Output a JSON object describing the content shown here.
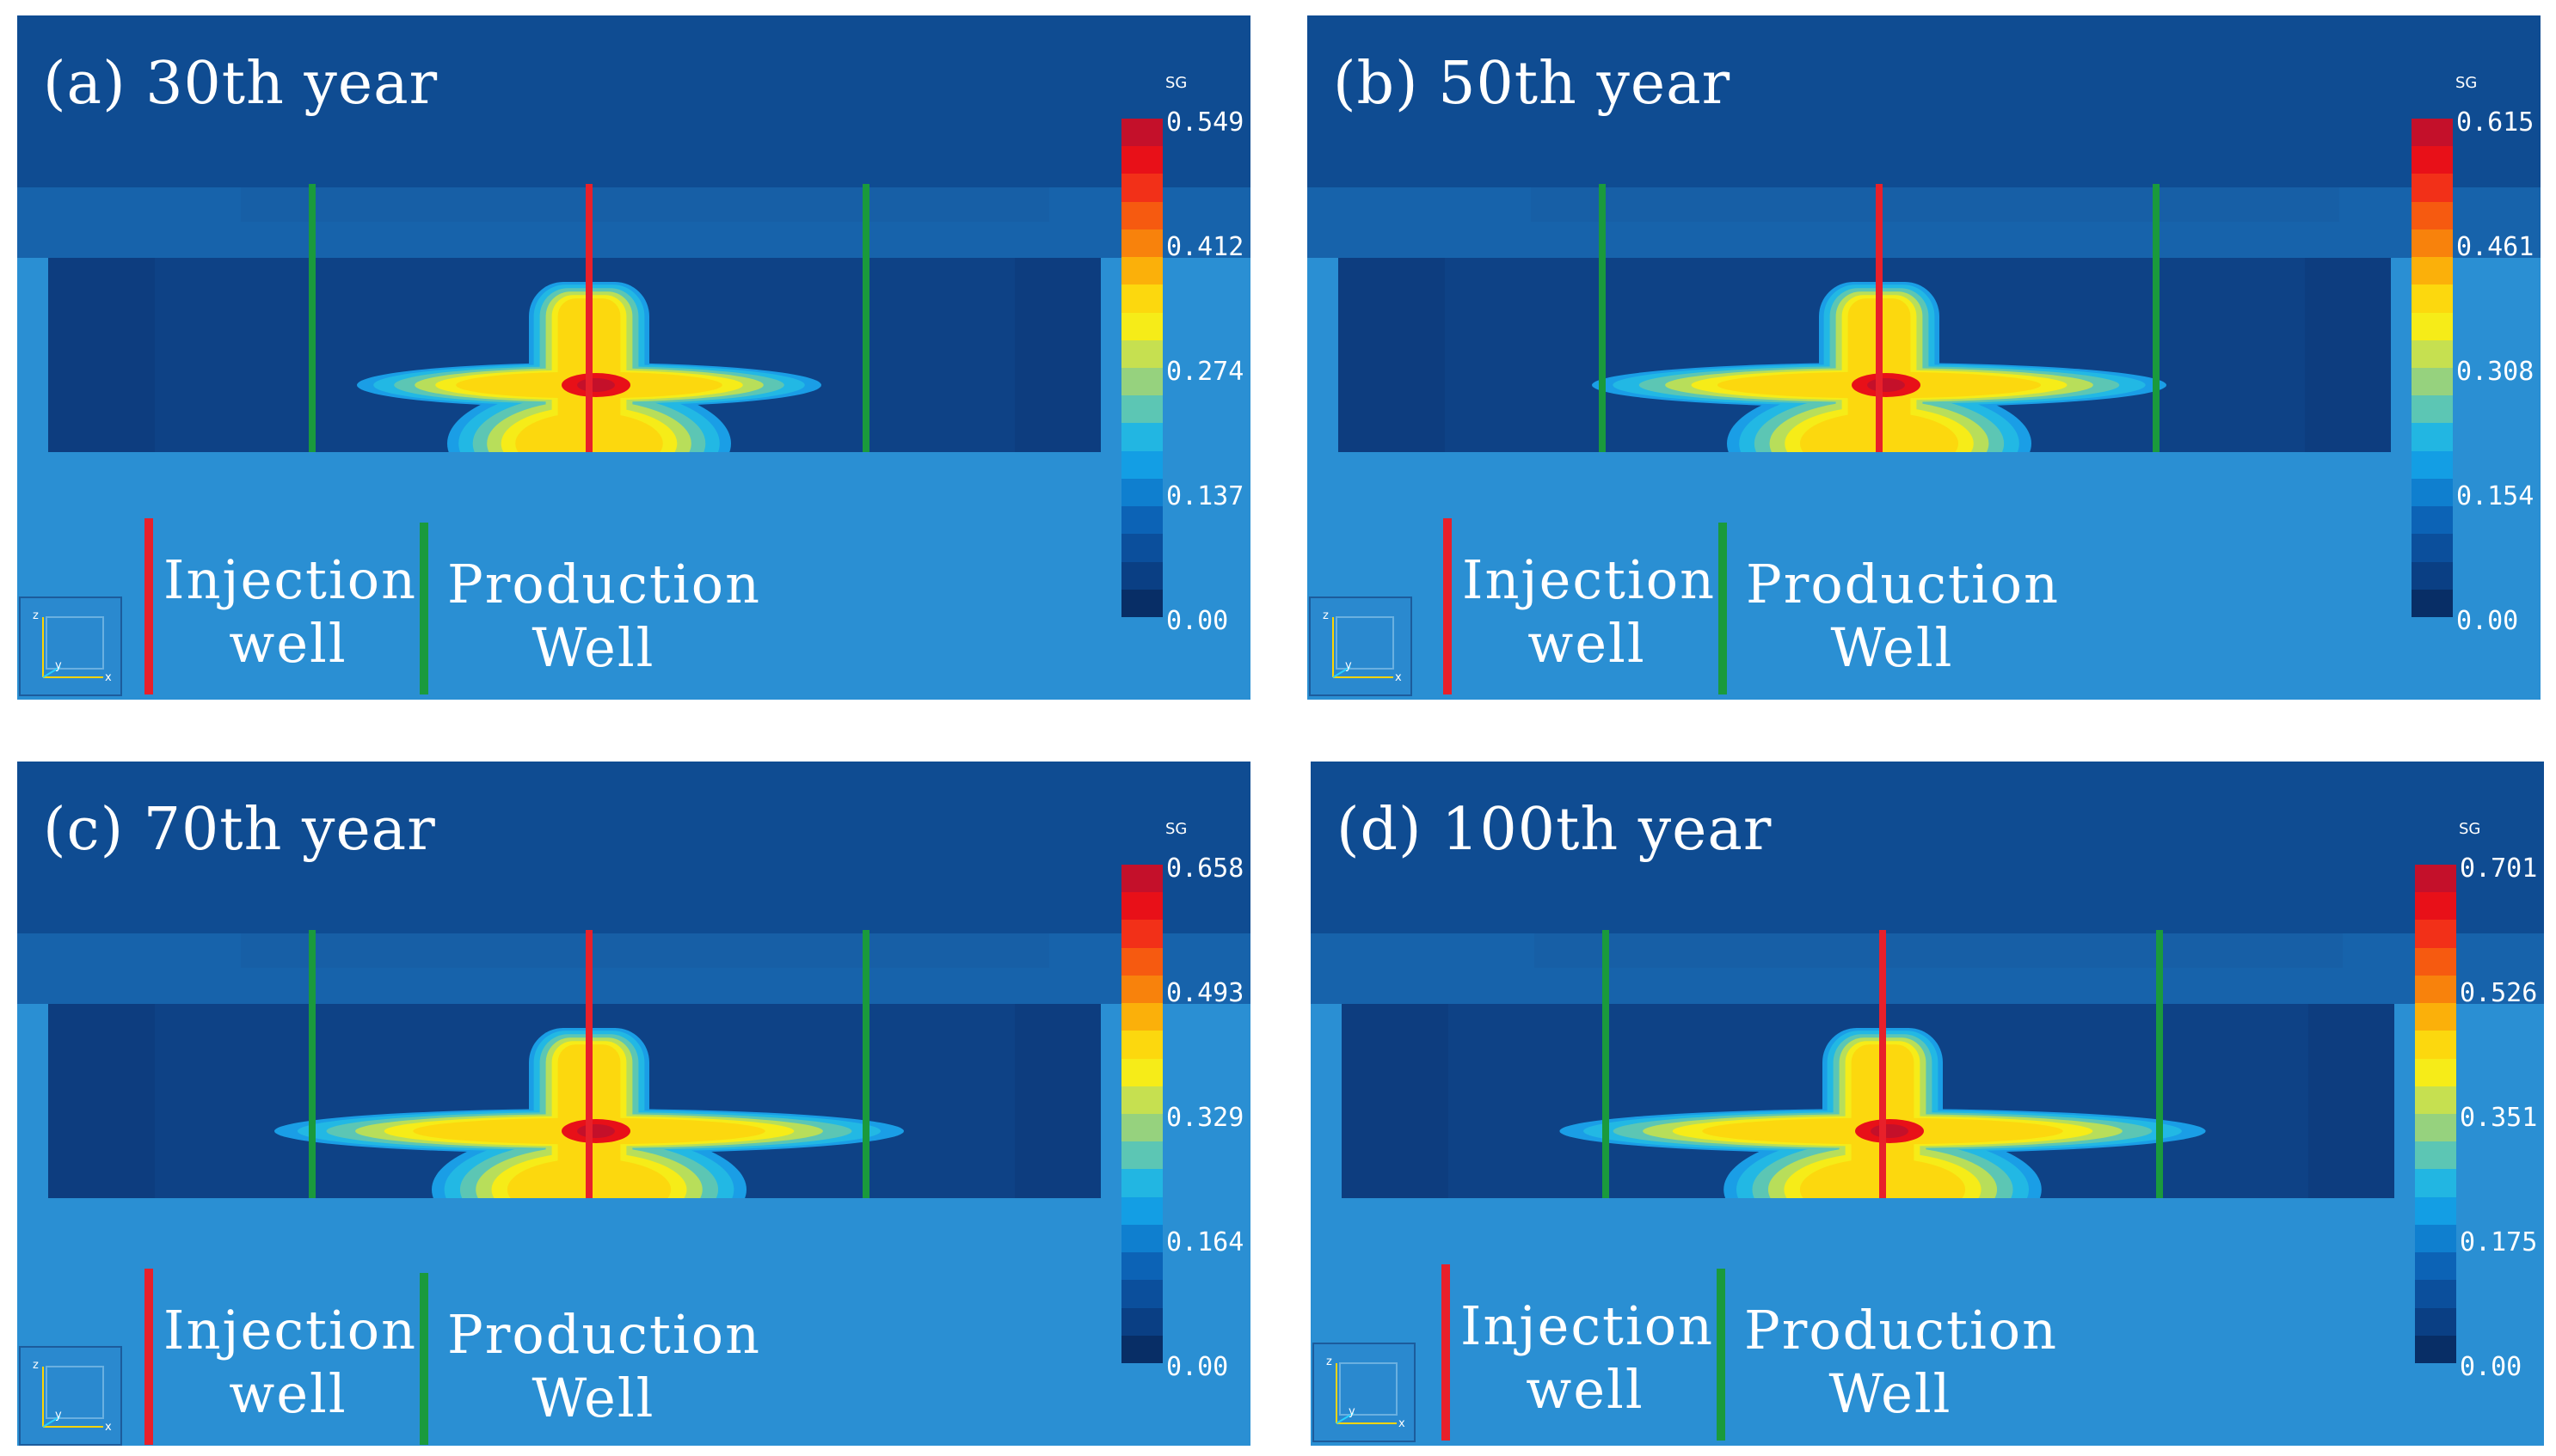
{
  "legend": {
    "injection_label_line1": "Injection",
    "injection_label_line2": "well",
    "production_label_line1": "Production",
    "production_label_line2": "Well",
    "injection_color": "#e8202a",
    "production_color": "#1a9a3c"
  },
  "axes_indicator": {
    "z": "z",
    "y": "y",
    "x": "x"
  },
  "colorbar": {
    "quantity": "SG",
    "colors": [
      "#c4102a",
      "#e81018",
      "#f23018",
      "#f65a10",
      "#f8820c",
      "#fbb00a",
      "#fcd80e",
      "#f6ec18",
      "#c6e050",
      "#96d27e",
      "#5cc6b4",
      "#22b6e2",
      "#139ee4",
      "#0f7fcf",
      "#0c63b6",
      "#0b4f9c",
      "#0a3f84",
      "#082e66"
    ]
  },
  "panels": [
    {
      "title": "(a)  30th  year",
      "sg_max_tick": "0.549",
      "ticks": [
        "0.549",
        "0.412",
        "0.274",
        "0.137",
        "0.00"
      ],
      "year": 30,
      "lateral_extent": 0.75
    },
    {
      "title": "(b)  50th year",
      "sg_max_tick": "0.615",
      "ticks": [
        "0.615",
        "0.461",
        "0.308",
        "0.154",
        "0.00"
      ],
      "year": 50,
      "lateral_extent": 0.95
    },
    {
      "title": "(c)  70th year",
      "sg_max_tick": "0.658",
      "ticks": [
        "0.658",
        "0.493",
        "0.329",
        "0.164",
        "0.00"
      ],
      "year": 70,
      "lateral_extent": 1.05
    },
    {
      "title": "(d)  100th year",
      "sg_max_tick": "0.701",
      "ticks": [
        "0.701",
        "0.526",
        "0.351",
        "0.175",
        "0.00"
      ],
      "year": 100,
      "lateral_extent": 1.08
    }
  ]
}
